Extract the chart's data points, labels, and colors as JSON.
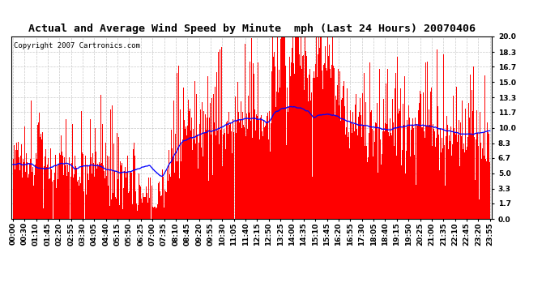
{
  "title": "Actual and Average Wind Speed by Minute  mph (Last 24 Hours) 20070406",
  "copyright": "Copyright 2007 Cartronics.com",
  "yticks": [
    0.0,
    1.7,
    3.3,
    5.0,
    6.7,
    8.3,
    10.0,
    11.7,
    13.3,
    15.0,
    16.7,
    18.3,
    20.0
  ],
  "ymax": 20.0,
  "ymin": 0.0,
  "bar_color": "#FF0000",
  "line_color": "#0000FF",
  "background_color": "#FFFFFF",
  "grid_color": "#BBBBBB",
  "title_fontsize": 9.5,
  "copyright_fontsize": 6.5,
  "tick_fontsize": 6.5,
  "xtick_labels": [
    "00:00",
    "00:30",
    "01:10",
    "01:45",
    "02:20",
    "02:55",
    "03:30",
    "04:05",
    "04:40",
    "05:15",
    "05:50",
    "06:25",
    "07:00",
    "07:35",
    "08:10",
    "08:45",
    "09:20",
    "09:55",
    "10:30",
    "11:05",
    "11:40",
    "12:15",
    "12:50",
    "13:25",
    "14:00",
    "14:35",
    "15:10",
    "15:45",
    "16:20",
    "16:55",
    "17:30",
    "18:05",
    "18:40",
    "19:15",
    "19:50",
    "20:25",
    "21:00",
    "21:35",
    "22:10",
    "22:45",
    "23:20",
    "23:55"
  ]
}
